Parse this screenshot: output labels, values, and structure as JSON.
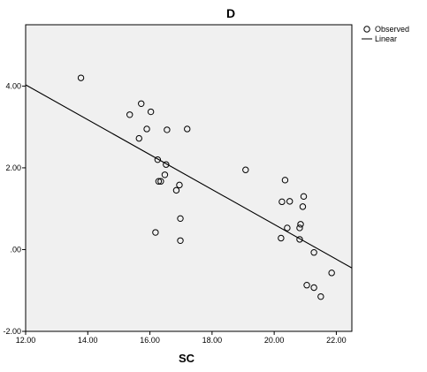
{
  "chart_data": {
    "type": "scatter",
    "title": "D",
    "xlabel": "SC",
    "ylabel": "",
    "xlim": [
      12.0,
      22.5
    ],
    "ylim": [
      -2.0,
      5.5
    ],
    "x_ticks": [
      "12.00",
      "14.00",
      "16.00",
      "18.00",
      "20.00",
      "22.00"
    ],
    "y_ticks": [
      "-2.00",
      ".00",
      "2.00",
      "4.00"
    ],
    "grid": false,
    "legend_position": "top-right",
    "series": [
      {
        "name": "Observed",
        "marker": "circle-open",
        "points": [
          {
            "x": 13.78,
            "y": 4.2
          },
          {
            "x": 15.35,
            "y": 3.3
          },
          {
            "x": 15.72,
            "y": 3.57
          },
          {
            "x": 15.65,
            "y": 2.72
          },
          {
            "x": 16.03,
            "y": 3.37
          },
          {
            "x": 15.9,
            "y": 2.95
          },
          {
            "x": 16.55,
            "y": 2.93
          },
          {
            "x": 17.2,
            "y": 2.95
          },
          {
            "x": 16.25,
            "y": 2.2
          },
          {
            "x": 16.52,
            "y": 2.08
          },
          {
            "x": 16.48,
            "y": 1.83
          },
          {
            "x": 16.28,
            "y": 1.67
          },
          {
            "x": 16.35,
            "y": 1.67
          },
          {
            "x": 16.95,
            "y": 1.58
          },
          {
            "x": 16.85,
            "y": 1.45
          },
          {
            "x": 16.98,
            "y": 0.76
          },
          {
            "x": 16.18,
            "y": 0.42
          },
          {
            "x": 16.98,
            "y": 0.22
          },
          {
            "x": 19.08,
            "y": 1.95
          },
          {
            "x": 20.35,
            "y": 1.7
          },
          {
            "x": 20.25,
            "y": 1.17
          },
          {
            "x": 20.5,
            "y": 1.18
          },
          {
            "x": 20.95,
            "y": 1.3
          },
          {
            "x": 20.92,
            "y": 1.05
          },
          {
            "x": 20.85,
            "y": 0.62
          },
          {
            "x": 20.42,
            "y": 0.53
          },
          {
            "x": 20.82,
            "y": 0.53
          },
          {
            "x": 20.22,
            "y": 0.28
          },
          {
            "x": 20.82,
            "y": 0.25
          },
          {
            "x": 21.28,
            "y": -0.07
          },
          {
            "x": 21.85,
            "y": -0.57
          },
          {
            "x": 21.05,
            "y": -0.87
          },
          {
            "x": 21.28,
            "y": -0.93
          },
          {
            "x": 21.5,
            "y": -1.15
          }
        ]
      },
      {
        "name": "Linear",
        "type": "line",
        "points": [
          {
            "x": 12.0,
            "y": 4.03
          },
          {
            "x": 22.5,
            "y": -0.45
          }
        ]
      }
    ]
  }
}
